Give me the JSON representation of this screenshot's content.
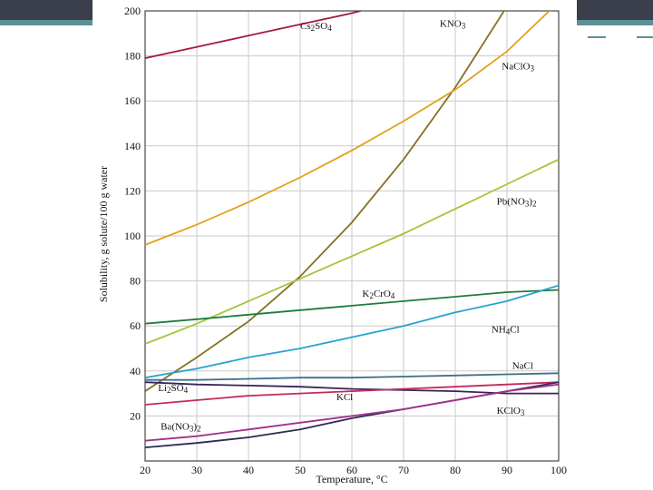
{
  "chart_data": {
    "type": "line",
    "title": "",
    "xlabel": "Temperature, °C",
    "ylabel": "Solubility, g solute/100 g water",
    "xlim": [
      20,
      100
    ],
    "ylim": [
      0,
      200
    ],
    "xticks": [
      20,
      30,
      40,
      50,
      60,
      70,
      80,
      90,
      100
    ],
    "yticks": [
      20,
      40,
      60,
      80,
      100,
      120,
      140,
      160,
      180,
      200
    ],
    "xtick_labels": [
      "20",
      "30",
      "40",
      "50",
      "60",
      "70",
      "80",
      "90",
      "100"
    ],
    "ytick_labels": [
      "20",
      "40",
      "60",
      "80",
      "100",
      "120",
      "140",
      "160",
      "180",
      "200"
    ],
    "grid": true,
    "series": [
      {
        "name": "Cs2SO4",
        "label_main": "Cs",
        "label_parts": [
          [
            "Cs",
            false
          ],
          [
            "2",
            true
          ],
          [
            "SO",
            false
          ],
          [
            "4",
            true
          ]
        ],
        "color": "#a31d3a",
        "label_at": [
          50,
          192
        ],
        "points": [
          [
            20,
            179
          ],
          [
            30,
            184
          ],
          [
            40,
            189
          ],
          [
            50,
            194
          ],
          [
            60,
            199
          ],
          [
            70,
            205
          ]
        ]
      },
      {
        "name": "KNO3",
        "label_parts": [
          [
            "KNO",
            false
          ],
          [
            "3",
            true
          ]
        ],
        "color": "#857024",
        "label_at": [
          77,
          193
        ],
        "points": [
          [
            20,
            31
          ],
          [
            30,
            46
          ],
          [
            40,
            62
          ],
          [
            50,
            82
          ],
          [
            60,
            106
          ],
          [
            70,
            134
          ],
          [
            80,
            166
          ],
          [
            90,
            202
          ]
        ]
      },
      {
        "name": "NaClO3",
        "label_parts": [
          [
            "NaClO",
            false
          ],
          [
            "3",
            true
          ]
        ],
        "color": "#e0a21a",
        "label_at": [
          89,
          174
        ],
        "points": [
          [
            20,
            96
          ],
          [
            30,
            105
          ],
          [
            40,
            115
          ],
          [
            50,
            126
          ],
          [
            60,
            138
          ],
          [
            70,
            151
          ],
          [
            80,
            165
          ],
          [
            90,
            182
          ],
          [
            100,
            204
          ]
        ]
      },
      {
        "name": "Pb(NO3)2",
        "label_parts": [
          [
            "Pb(NO",
            false
          ],
          [
            "3",
            true
          ],
          [
            ")",
            false
          ],
          [
            "2",
            true
          ]
        ],
        "color": "#a2c53a",
        "label_at": [
          88,
          114
        ],
        "points": [
          [
            20,
            52
          ],
          [
            30,
            61
          ],
          [
            40,
            71
          ],
          [
            50,
            81
          ],
          [
            60,
            91
          ],
          [
            70,
            101
          ],
          [
            80,
            112
          ],
          [
            90,
            123
          ],
          [
            100,
            134
          ]
        ]
      },
      {
        "name": "K2CrO4",
        "label_parts": [
          [
            "K",
            false
          ],
          [
            "2",
            true
          ],
          [
            "CrO",
            false
          ],
          [
            "4",
            true
          ]
        ],
        "color": "#1d7d3b",
        "label_at": [
          62,
          73
        ],
        "points": [
          [
            20,
            61
          ],
          [
            30,
            63
          ],
          [
            40,
            65
          ],
          [
            50,
            67
          ],
          [
            60,
            69
          ],
          [
            70,
            71
          ],
          [
            80,
            73
          ],
          [
            90,
            75
          ],
          [
            100,
            76
          ]
        ]
      },
      {
        "name": "NH4Cl",
        "label_parts": [
          [
            "NH",
            false
          ],
          [
            "4",
            true
          ],
          [
            "Cl",
            false
          ]
        ],
        "color": "#2aa1cf",
        "label_at": [
          87,
          57
        ],
        "points": [
          [
            20,
            37
          ],
          [
            30,
            41
          ],
          [
            40,
            46
          ],
          [
            50,
            50
          ],
          [
            60,
            55
          ],
          [
            70,
            60
          ],
          [
            80,
            66
          ],
          [
            90,
            71
          ],
          [
            100,
            78
          ]
        ]
      },
      {
        "name": "NaCl",
        "label_parts": [
          [
            "NaCl",
            false
          ]
        ],
        "color": "#3f6f8c",
        "label_at": [
          91,
          41
        ],
        "points": [
          [
            20,
            36
          ],
          [
            30,
            36
          ],
          [
            40,
            36.5
          ],
          [
            50,
            37
          ],
          [
            60,
            37
          ],
          [
            70,
            37.5
          ],
          [
            80,
            38
          ],
          [
            90,
            38.5
          ],
          [
            100,
            39
          ]
        ]
      },
      {
        "name": "Li2SO4",
        "label_parts": [
          [
            "Li",
            false
          ],
          [
            "2",
            true
          ],
          [
            "SO",
            false
          ],
          [
            "4",
            true
          ]
        ],
        "color": "#3a2358",
        "label_at": [
          22.5,
          31
        ],
        "points": [
          [
            20,
            35
          ],
          [
            30,
            34
          ],
          [
            40,
            33.5
          ],
          [
            50,
            33
          ],
          [
            60,
            32
          ],
          [
            70,
            31.5
          ],
          [
            80,
            31
          ],
          [
            90,
            30
          ],
          [
            100,
            30
          ]
        ]
      },
      {
        "name": "KCl",
        "label_parts": [
          [
            "KCl",
            false
          ]
        ],
        "color": "#c12a5e",
        "label_at": [
          57,
          27
        ],
        "points": [
          [
            20,
            25
          ],
          [
            30,
            27
          ],
          [
            40,
            29
          ],
          [
            50,
            30
          ],
          [
            60,
            31
          ],
          [
            70,
            32
          ],
          [
            80,
            33
          ],
          [
            90,
            34
          ],
          [
            100,
            35
          ]
        ]
      },
      {
        "name": "KClO3",
        "label_parts": [
          [
            "KClO",
            false
          ],
          [
            "3",
            true
          ]
        ],
        "color": "#2e2a55",
        "label_at": [
          88,
          21
        ],
        "points": [
          [
            20,
            6
          ],
          [
            30,
            8
          ],
          [
            40,
            10.5
          ],
          [
            50,
            14
          ],
          [
            60,
            19
          ],
          [
            70,
            23
          ],
          [
            80,
            27
          ],
          [
            90,
            31
          ],
          [
            100,
            35
          ]
        ]
      },
      {
        "name": "Ba(NO3)2",
        "label_parts": [
          [
            "Ba(NO",
            false
          ],
          [
            "3",
            true
          ],
          [
            ")",
            false
          ],
          [
            "2",
            true
          ]
        ],
        "color": "#a0318b",
        "label_at": [
          23,
          14
        ],
        "points": [
          [
            20,
            9
          ],
          [
            30,
            11
          ],
          [
            40,
            14
          ],
          [
            50,
            17
          ],
          [
            60,
            20
          ],
          [
            70,
            23
          ],
          [
            80,
            27
          ],
          [
            90,
            31
          ],
          [
            100,
            34
          ]
        ]
      }
    ]
  }
}
